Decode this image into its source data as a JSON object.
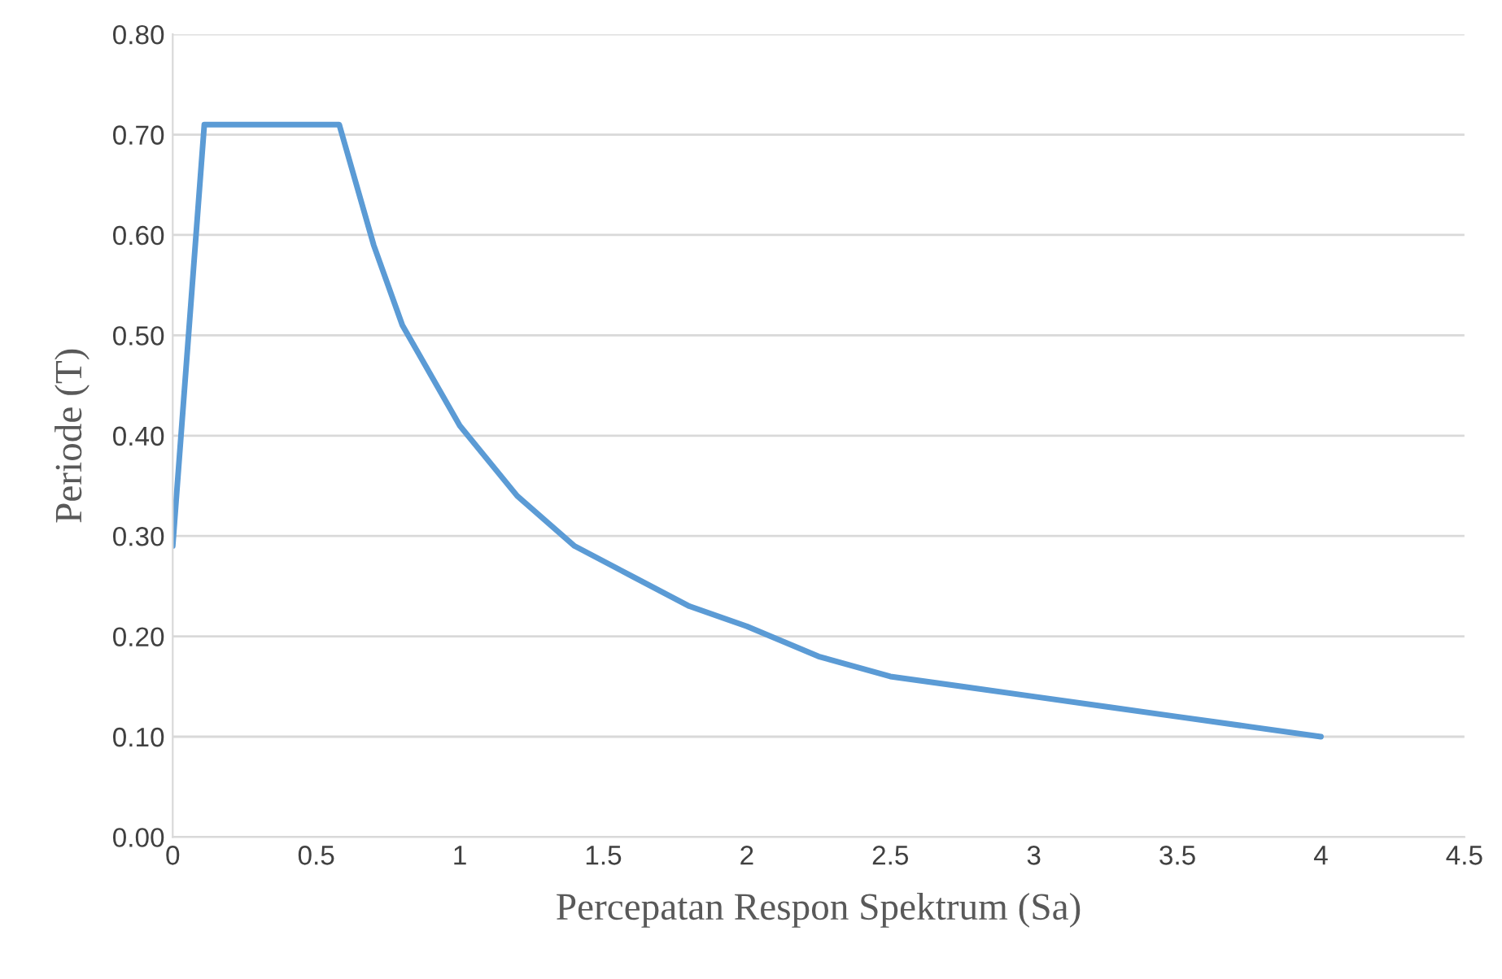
{
  "chart_data": {
    "type": "line",
    "xlabel": "Percepatan Respon Spektrum (Sa)",
    "ylabel": "Periode (T)",
    "x": [
      0,
      0.11,
      0.58,
      0.6,
      0.7,
      0.8,
      0.9,
      1,
      1.2,
      1.4,
      1.6,
      1.8,
      2,
      2.25,
      2.5,
      2.75,
      3,
      3.25,
      3.5,
      3.75,
      4
    ],
    "series": [
      {
        "color": "#5b9bd5",
        "values": [
          0.29,
          0.71,
          0.71,
          0.69,
          0.59,
          0.51,
          0.46,
          0.41,
          0.34,
          0.29,
          0.26,
          0.23,
          0.21,
          0.18,
          0.16,
          0.15,
          0.14,
          0.13,
          0.12,
          0.11,
          0.1
        ]
      }
    ],
    "xlim": [
      0,
      4.5
    ],
    "xticks": [
      0,
      0.5,
      1,
      1.5,
      2,
      2.5,
      3,
      3.5,
      4,
      4.5
    ],
    "ylim": [
      0,
      0.8
    ],
    "yticks": [
      {
        "value": 0,
        "label": "0.00"
      },
      {
        "value": 0.1,
        "label": "0.10"
      },
      {
        "value": 0.2,
        "label": "0.20"
      },
      {
        "value": 0.3,
        "label": "0.30"
      },
      {
        "value": 0.4,
        "label": "0.40"
      },
      {
        "value": 0.5,
        "label": "0.50"
      },
      {
        "value": 0.6,
        "label": "0.60"
      },
      {
        "value": 0.7,
        "label": "0.70"
      },
      {
        "value": 0.8,
        "label": "0.80"
      }
    ],
    "grid": "y",
    "marker": "none",
    "line_style": "solid",
    "legend": false
  }
}
